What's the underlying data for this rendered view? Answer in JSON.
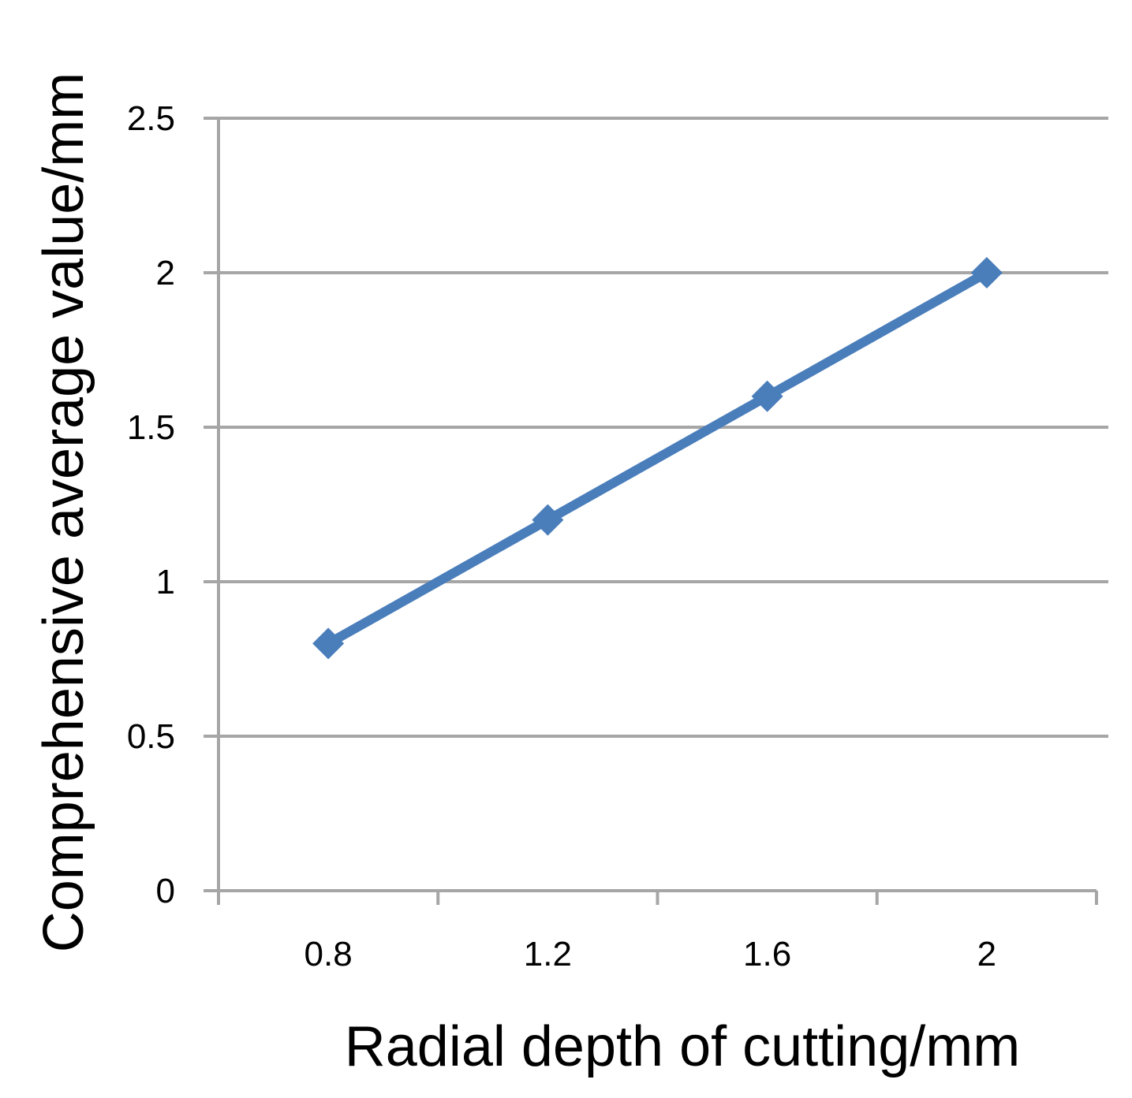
{
  "chart_data": {
    "type": "line",
    "x": [
      0.8,
      1.2,
      1.6,
      2
    ],
    "categories": [
      "0.8",
      "1.2",
      "1.6",
      "2"
    ],
    "series": [
      {
        "values": [
          0.8,
          1.2,
          1.6,
          2.0
        ],
        "marker": "diamond",
        "color": "#4a7ebb"
      }
    ],
    "xlabel": "Radial depth of cutting/mm",
    "ylabel": "Comprehensive average value/mm",
    "ylim": [
      0,
      2.5
    ],
    "yticks": [
      "0",
      "0.5",
      "1",
      "1.5",
      "2",
      "2.5"
    ],
    "grid": "horizontal",
    "legend": "none",
    "colors": {
      "gridline": "#a6a6a6",
      "series": "#4a7ebb"
    }
  }
}
